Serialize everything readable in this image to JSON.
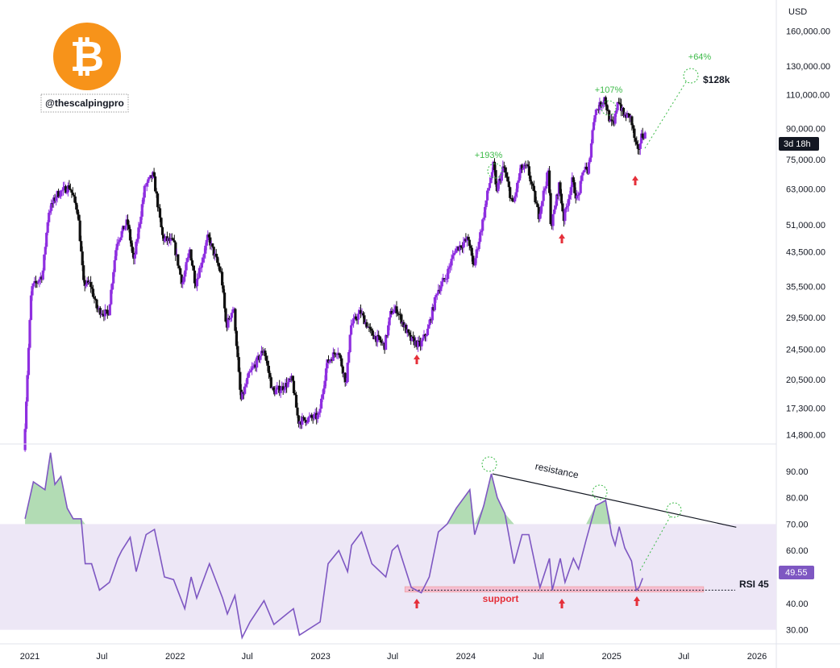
{
  "brand": {
    "handle": "@thescalpingpro",
    "logo_color": "#f7931a"
  },
  "colors": {
    "candle_up": "#8f2fe0",
    "candle_down": "#111111",
    "rsi_line": "#7e57c2",
    "rsi_band": "#ede7f6",
    "overbought_fill": "#a5d6a7",
    "support_zone": "#f8bbd0",
    "annotation_green": "#3cba48",
    "arrow_red": "#e5303a"
  },
  "chart_data": [
    {
      "type": "candlestick",
      "ylabel": "USD",
      "y_scale": "log",
      "ylim": [
        14000,
        185000
      ],
      "y_ticks": [
        "160,000.00",
        "130,000.00",
        "110,000.00",
        "90,000.00",
        "75,000.00",
        "63,000.00",
        "51,000.00",
        "43,500.00",
        "35,500.00",
        "29,500.00",
        "24,500.00",
        "20,500.00",
        "17,300.00",
        "14,800.00"
      ],
      "x_ticks": [
        "2021",
        "Jul",
        "2022",
        "Jul",
        "2023",
        "Jul",
        "2024",
        "Jul",
        "2025",
        "Jul",
        "2026"
      ],
      "countdown_label": "3d 18h",
      "price_path": [
        [
          "2020-12-20",
          13500
        ],
        [
          "2021-01-08",
          35000
        ],
        [
          "2021-02-05",
          38000
        ],
        [
          "2021-02-20",
          55000
        ],
        [
          "2021-03-13",
          61000
        ],
        [
          "2021-04-14",
          64000
        ],
        [
          "2021-05-05",
          55000
        ],
        [
          "2021-05-19",
          36000
        ],
        [
          "2021-06-05",
          36000
        ],
        [
          "2021-06-22",
          31000
        ],
        [
          "2021-07-20",
          30000
        ],
        [
          "2021-08-10",
          46000
        ],
        [
          "2021-09-06",
          52000
        ],
        [
          "2021-09-22",
          41000
        ],
        [
          "2021-10-20",
          64000
        ],
        [
          "2021-11-10",
          68500
        ],
        [
          "2021-12-04",
          47000
        ],
        [
          "2021-12-31",
          46000
        ],
        [
          "2022-01-22",
          36000
        ],
        [
          "2022-02-10",
          44000
        ],
        [
          "2022-02-24",
          36000
        ],
        [
          "2022-03-28",
          47500
        ],
        [
          "2022-04-30",
          38000
        ],
        [
          "2022-05-12",
          28000
        ],
        [
          "2022-05-31",
          31500
        ],
        [
          "2022-06-18",
          18000
        ],
        [
          "2022-07-08",
          21000
        ],
        [
          "2022-08-15",
          24500
        ],
        [
          "2022-09-06",
          19000
        ],
        [
          "2022-09-30",
          19500
        ],
        [
          "2022-10-25",
          20500
        ],
        [
          "2022-11-09",
          16000
        ],
        [
          "2022-12-31",
          16500
        ],
        [
          "2023-01-20",
          22500
        ],
        [
          "2023-02-16",
          24500
        ],
        [
          "2023-03-10",
          20000
        ],
        [
          "2023-03-20",
          28000
        ],
        [
          "2023-04-14",
          30500
        ],
        [
          "2023-05-10",
          27000
        ],
        [
          "2023-06-14",
          25000
        ],
        [
          "2023-06-30",
          30500
        ],
        [
          "2023-07-14",
          31000
        ],
        [
          "2023-08-17",
          26000
        ],
        [
          "2023-09-11",
          25000
        ],
        [
          "2023-10-01",
          27500
        ],
        [
          "2023-10-24",
          34500
        ],
        [
          "2023-11-15",
          37500
        ],
        [
          "2023-12-08",
          44000
        ],
        [
          "2024-01-11",
          47000
        ],
        [
          "2024-01-23",
          39500
        ],
        [
          "2024-02-15",
          52000
        ],
        [
          "2024-02-28",
          62000
        ],
        [
          "2024-03-14",
          73000
        ],
        [
          "2024-03-20",
          62000
        ],
        [
          "2024-04-08",
          72000
        ],
        [
          "2024-05-01",
          57000
        ],
        [
          "2024-05-21",
          71000
        ],
        [
          "2024-06-07",
          71500
        ],
        [
          "2024-07-05",
          54000
        ],
        [
          "2024-07-29",
          70000
        ],
        [
          "2024-08-05",
          50000
        ],
        [
          "2024-08-25",
          64500
        ],
        [
          "2024-09-06",
          53000
        ],
        [
          "2024-09-27",
          66000
        ],
        [
          "2024-10-10",
          59000
        ],
        [
          "2024-10-29",
          73000
        ],
        [
          "2024-11-05",
          68000
        ],
        [
          "2024-11-22",
          99000
        ],
        [
          "2024-12-05",
          103000
        ],
        [
          "2024-12-17",
          108000
        ],
        [
          "2025-01-01",
          93000
        ],
        [
          "2025-01-10",
          92000
        ],
        [
          "2025-01-20",
          108000
        ],
        [
          "2025-02-03",
          97000
        ],
        [
          "2025-02-20",
          97000
        ],
        [
          "2025-03-04",
          83000
        ],
        [
          "2025-03-11",
          78000
        ],
        [
          "2025-03-20",
          86000
        ],
        [
          "2025-03-26",
          87000
        ]
      ]
    },
    {
      "type": "line",
      "ylabel": "RSI",
      "ylim": [
        25,
        100
      ],
      "y_ticks": [
        "90.00",
        "80.00",
        "70.00",
        "60.00",
        "40.00",
        "30.00"
      ],
      "band": [
        30,
        70
      ],
      "last_value_label": "49.55",
      "level_label": "RSI 45",
      "series": [
        {
          "points": [
            [
              "2020-12-20",
              72
            ],
            [
              "2021-01-10",
              86
            ],
            [
              "2021-02-08",
              83
            ],
            [
              "2021-02-22",
              97
            ],
            [
              "2021-03-05",
              85
            ],
            [
              "2021-03-20",
              88
            ],
            [
              "2021-04-05",
              76
            ],
            [
              "2021-04-20",
              72
            ],
            [
              "2021-05-10",
              72
            ],
            [
              "2021-05-20",
              55
            ],
            [
              "2021-06-05",
              55
            ],
            [
              "2021-06-25",
              45
            ],
            [
              "2021-07-20",
              48
            ],
            [
              "2021-08-10",
              57
            ],
            [
              "2021-08-20",
              60
            ],
            [
              "2021-09-10",
              65
            ],
            [
              "2021-09-25",
              52
            ],
            [
              "2021-10-20",
              66
            ],
            [
              "2021-11-10",
              68
            ],
            [
              "2021-12-05",
              50
            ],
            [
              "2021-12-28",
              49
            ],
            [
              "2022-01-25",
              38
            ],
            [
              "2022-02-10",
              50
            ],
            [
              "2022-02-24",
              42
            ],
            [
              "2022-03-28",
              55
            ],
            [
              "2022-04-30",
              42
            ],
            [
              "2022-05-12",
              36
            ],
            [
              "2022-05-31",
              43
            ],
            [
              "2022-06-18",
              27
            ],
            [
              "2022-07-08",
              33
            ],
            [
              "2022-08-12",
              41
            ],
            [
              "2022-09-06",
              32
            ],
            [
              "2022-09-30",
              35
            ],
            [
              "2022-10-25",
              38
            ],
            [
              "2022-11-09",
              28
            ],
            [
              "2022-12-31",
              33
            ],
            [
              "2023-01-20",
              55
            ],
            [
              "2023-02-16",
              60
            ],
            [
              "2023-03-10",
              52
            ],
            [
              "2023-03-20",
              62
            ],
            [
              "2023-04-14",
              67
            ],
            [
              "2023-05-10",
              55
            ],
            [
              "2023-06-14",
              50
            ],
            [
              "2023-06-30",
              60
            ],
            [
              "2023-07-14",
              62
            ],
            [
              "2023-08-17",
              46
            ],
            [
              "2023-09-11",
              44
            ],
            [
              "2023-10-01",
              50
            ],
            [
              "2023-10-24",
              67
            ],
            [
              "2023-11-15",
              70
            ],
            [
              "2023-12-08",
              76
            ],
            [
              "2024-01-11",
              83
            ],
            [
              "2024-01-23",
              66
            ],
            [
              "2024-02-15",
              77
            ],
            [
              "2024-03-05",
              89
            ],
            [
              "2024-03-20",
              80
            ],
            [
              "2024-04-08",
              74
            ],
            [
              "2024-05-01",
              55
            ],
            [
              "2024-05-21",
              66
            ],
            [
              "2024-06-07",
              66
            ],
            [
              "2024-07-05",
              46
            ],
            [
              "2024-07-29",
              57
            ],
            [
              "2024-08-05",
              45
            ],
            [
              "2024-08-25",
              57
            ],
            [
              "2024-09-06",
              48
            ],
            [
              "2024-09-27",
              57
            ],
            [
              "2024-10-10",
              53
            ],
            [
              "2024-10-29",
              64
            ],
            [
              "2024-11-22",
              77
            ],
            [
              "2024-12-05",
              78
            ],
            [
              "2024-12-17",
              79
            ],
            [
              "2025-01-01",
              66
            ],
            [
              "2025-01-10",
              62
            ],
            [
              "2025-01-20",
              69
            ],
            [
              "2025-02-03",
              61
            ],
            [
              "2025-02-20",
              56
            ],
            [
              "2025-03-04",
              45
            ],
            [
              "2025-03-11",
              46
            ],
            [
              "2025-03-20",
              49.55
            ]
          ]
        }
      ]
    }
  ],
  "annotations": {
    "peak_2024": "+193%",
    "peak_2025": "+107%",
    "projection": "+64%",
    "target": "$128k",
    "resistance": "resistance",
    "support": "support"
  }
}
